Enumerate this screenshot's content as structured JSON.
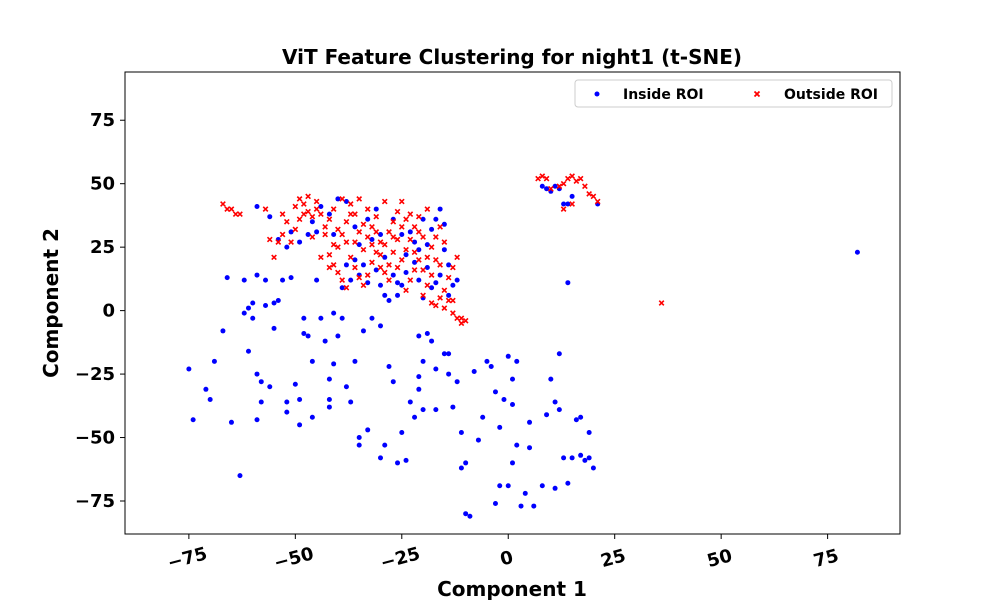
{
  "chart_data": {
    "type": "scatter",
    "title": "ViT Feature Clustering for night1 (t-SNE)",
    "xlabel": "Component 1",
    "ylabel": "Component 2",
    "xlim": [
      -90,
      92
    ],
    "ylim": [
      -88,
      94
    ],
    "xticks": [
      -75,
      -50,
      -25,
      0,
      25,
      50,
      75
    ],
    "yticks": [
      -75,
      -50,
      -25,
      0,
      25,
      50,
      75
    ],
    "grid": false,
    "legend_position": "top-right",
    "series": [
      {
        "name": "Inside ROI",
        "color": "#0000ff",
        "marker": "circle",
        "points": [
          [
            -75,
            -23
          ],
          [
            -74,
            -43
          ],
          [
            -71,
            -31
          ],
          [
            -70,
            -35
          ],
          [
            -69,
            -20
          ],
          [
            -67,
            -8
          ],
          [
            -66,
            13
          ],
          [
            -65,
            -44
          ],
          [
            -63,
            -65
          ],
          [
            -62,
            12
          ],
          [
            -62,
            -1
          ],
          [
            -61,
            1
          ],
          [
            -61,
            -16
          ],
          [
            -60,
            3
          ],
          [
            -60,
            -3
          ],
          [
            -59,
            14
          ],
          [
            -59,
            -25
          ],
          [
            -59,
            -43
          ],
          [
            -58,
            -36
          ],
          [
            -58,
            -28
          ],
          [
            -57,
            2
          ],
          [
            -57,
            12
          ],
          [
            -56,
            -30
          ],
          [
            -55,
            3
          ],
          [
            -55,
            -7
          ],
          [
            -54,
            4
          ],
          [
            -53,
            12
          ],
          [
            -52,
            -40
          ],
          [
            -52,
            -36
          ],
          [
            -51,
            13
          ],
          [
            -50,
            -29
          ],
          [
            -49,
            -45
          ],
          [
            -49,
            -35
          ],
          [
            -48,
            -3
          ],
          [
            -48,
            -9
          ],
          [
            -47,
            -10
          ],
          [
            -46,
            -20
          ],
          [
            -46,
            -42
          ],
          [
            -45,
            12
          ],
          [
            -44,
            -3
          ],
          [
            -43,
            -12
          ],
          [
            -42,
            -35
          ],
          [
            -42,
            -27
          ],
          [
            -42,
            -38
          ],
          [
            -41,
            -21
          ],
          [
            -41,
            -1
          ],
          [
            -40,
            -10
          ],
          [
            -39,
            -3
          ],
          [
            -38,
            -30
          ],
          [
            -37,
            -36
          ],
          [
            -36,
            -20
          ],
          [
            -35,
            -53
          ],
          [
            -35,
            -50
          ],
          [
            -34,
            -8
          ],
          [
            -33,
            -47
          ],
          [
            -32,
            -3
          ],
          [
            -30,
            -58
          ],
          [
            -30,
            -6
          ],
          [
            -29,
            -53
          ],
          [
            -28,
            -22
          ],
          [
            -27,
            -28
          ],
          [
            -26,
            -60
          ],
          [
            -25,
            -48
          ],
          [
            -24,
            -59
          ],
          [
            -23,
            -36
          ],
          [
            -22,
            -42
          ],
          [
            -21,
            -31
          ],
          [
            -21,
            -26
          ],
          [
            -21,
            -10
          ],
          [
            -20,
            -20
          ],
          [
            -20,
            -39
          ],
          [
            -19,
            -9
          ],
          [
            -18,
            -12
          ],
          [
            -17,
            -23
          ],
          [
            -17,
            -39
          ],
          [
            -15,
            -17
          ],
          [
            -14,
            -17
          ],
          [
            -14,
            -25
          ],
          [
            -13,
            -38
          ],
          [
            -12,
            -28
          ],
          [
            -11,
            -48
          ],
          [
            -11,
            -62
          ],
          [
            -10,
            -80
          ],
          [
            -10,
            -60
          ],
          [
            -9,
            -81
          ],
          [
            -8,
            -24
          ],
          [
            -7,
            -51
          ],
          [
            -6,
            -42
          ],
          [
            -5,
            -20
          ],
          [
            -4,
            -22
          ],
          [
            -3,
            -32
          ],
          [
            -3,
            -76
          ],
          [
            -2,
            -46
          ],
          [
            -2,
            -69
          ],
          [
            -1,
            -35
          ],
          [
            0,
            -18
          ],
          [
            0,
            -69
          ],
          [
            1,
            -60
          ],
          [
            1,
            -37
          ],
          [
            1,
            -27
          ],
          [
            2,
            -20
          ],
          [
            2,
            -53
          ],
          [
            3,
            -77
          ],
          [
            4,
            -72
          ],
          [
            5,
            -44
          ],
          [
            5,
            -54
          ],
          [
            6,
            -77
          ],
          [
            8,
            -69
          ],
          [
            9,
            -41
          ],
          [
            10,
            -27
          ],
          [
            11,
            -70
          ],
          [
            11,
            -36
          ],
          [
            12,
            -17
          ],
          [
            12,
            -39
          ],
          [
            13,
            -58
          ],
          [
            14,
            -68
          ],
          [
            15,
            -58
          ],
          [
            16,
            -43
          ],
          [
            17,
            -42
          ],
          [
            17,
            -57
          ],
          [
            18,
            -59
          ],
          [
            19,
            -58
          ],
          [
            19,
            -48
          ],
          [
            20,
            -62
          ],
          [
            82,
            23
          ],
          [
            -59,
            41
          ],
          [
            -56,
            37
          ],
          [
            -54,
            28
          ],
          [
            -52,
            25
          ],
          [
            -51,
            31
          ],
          [
            -49,
            27
          ],
          [
            -47,
            30
          ],
          [
            -46,
            35
          ],
          [
            -44,
            41
          ],
          [
            -42,
            38
          ],
          [
            -40,
            44
          ],
          [
            -38,
            43
          ],
          [
            -36,
            33
          ],
          [
            -35,
            26
          ],
          [
            -33,
            36
          ],
          [
            -31,
            40
          ],
          [
            -30,
            30
          ],
          [
            -29,
            21
          ],
          [
            -27,
            14
          ],
          [
            -26,
            6
          ],
          [
            -25,
            10
          ],
          [
            -24,
            15
          ],
          [
            -22,
            19
          ],
          [
            -21,
            12
          ],
          [
            -20,
            5
          ],
          [
            -19,
            26
          ],
          [
            -18,
            32
          ],
          [
            -17,
            36
          ],
          [
            -16,
            40
          ],
          [
            -15,
            24
          ],
          [
            -14,
            18
          ],
          [
            -13,
            10
          ],
          [
            -39,
            9
          ],
          [
            -38,
            18
          ],
          [
            -37,
            12
          ],
          [
            -36,
            20
          ],
          [
            -35,
            14
          ],
          [
            -33,
            11
          ],
          [
            -31,
            16
          ],
          [
            -29,
            6
          ],
          [
            -28,
            4
          ],
          [
            -26,
            11
          ],
          [
            -24,
            22
          ],
          [
            -23,
            31
          ],
          [
            -22,
            27
          ],
          [
            -20,
            36
          ],
          [
            -18,
            9
          ],
          [
            -16,
            14
          ],
          [
            -14,
            6
          ],
          [
            -12,
            12
          ],
          [
            -45,
            31
          ],
          [
            -41,
            30
          ],
          [
            -34,
            18
          ],
          [
            -32,
            28
          ],
          [
            -30,
            10
          ],
          [
            -27,
            36
          ],
          [
            -25,
            30
          ],
          [
            -21,
            24
          ],
          [
            -19,
            17
          ],
          [
            -17,
            11
          ],
          [
            -15,
            34
          ],
          [
            8,
            49
          ],
          [
            9,
            48
          ],
          [
            10,
            47
          ],
          [
            11,
            49
          ],
          [
            12,
            48
          ],
          [
            13,
            42
          ],
          [
            14,
            42
          ],
          [
            15,
            45
          ],
          [
            21,
            42
          ],
          [
            14,
            11
          ]
        ]
      },
      {
        "name": "Outside ROI",
        "color": "#ff0000",
        "marker": "cross",
        "points": [
          [
            -67,
            42
          ],
          [
            -66,
            40
          ],
          [
            -65,
            40
          ],
          [
            -64,
            38
          ],
          [
            -63,
            38
          ],
          [
            -56,
            28
          ],
          [
            -55,
            21
          ],
          [
            -54,
            27
          ],
          [
            -53,
            30
          ],
          [
            -52,
            35
          ],
          [
            -51,
            27
          ],
          [
            -50,
            32
          ],
          [
            -49,
            36
          ],
          [
            -48,
            42
          ],
          [
            -47,
            39
          ],
          [
            -46,
            37
          ],
          [
            -45,
            43
          ],
          [
            -44,
            38
          ],
          [
            -43,
            30
          ],
          [
            -42,
            36
          ],
          [
            -41,
            40
          ],
          [
            -40,
            25
          ],
          [
            -39,
            30
          ],
          [
            -38,
            35
          ],
          [
            -37,
            42
          ],
          [
            -36,
            27
          ],
          [
            -35,
            31
          ],
          [
            -34,
            24
          ],
          [
            -33,
            29
          ],
          [
            -32,
            33
          ],
          [
            -31,
            37
          ],
          [
            -30,
            22
          ],
          [
            -29,
            26
          ],
          [
            -28,
            31
          ],
          [
            -27,
            35
          ],
          [
            -26,
            39
          ],
          [
            -25,
            20
          ],
          [
            -24,
            24
          ],
          [
            -23,
            28
          ],
          [
            -22,
            33
          ],
          [
            -21,
            37
          ],
          [
            -20,
            16
          ],
          [
            -19,
            21
          ],
          [
            -18,
            25
          ],
          [
            -17,
            29
          ],
          [
            -16,
            33
          ],
          [
            -15,
            8
          ],
          [
            -14,
            13
          ],
          [
            -13,
            17
          ],
          [
            -12,
            21
          ],
          [
            -42,
            22
          ],
          [
            -41,
            18
          ],
          [
            -40,
            15
          ],
          [
            -39,
            12
          ],
          [
            -38,
            9
          ],
          [
            -37,
            21
          ],
          [
            -36,
            17
          ],
          [
            -35,
            13
          ],
          [
            -34,
            10
          ],
          [
            -33,
            14
          ],
          [
            -32,
            19
          ],
          [
            -31,
            23
          ],
          [
            -30,
            27
          ],
          [
            -29,
            15
          ],
          [
            -28,
            18
          ],
          [
            -27,
            23
          ],
          [
            -26,
            28
          ],
          [
            -25,
            33
          ],
          [
            -24,
            8
          ],
          [
            -23,
            12
          ],
          [
            -22,
            16
          ],
          [
            -21,
            20
          ],
          [
            -20,
            6
          ],
          [
            -19,
            10
          ],
          [
            -18,
            14
          ],
          [
            -17,
            2
          ],
          [
            -16,
            5
          ],
          [
            -15,
            1
          ],
          [
            -14,
            4
          ],
          [
            -13,
            -1
          ],
          [
            -12,
            -3
          ],
          [
            -11,
            -5
          ],
          [
            -10,
            -4
          ],
          [
            -57,
            40
          ],
          [
            -53,
            38
          ],
          [
            -49,
            44
          ],
          [
            -47,
            45
          ],
          [
            -45,
            40
          ],
          [
            -43,
            33
          ],
          [
            -41,
            26
          ],
          [
            -39,
            44
          ],
          [
            -37,
            38
          ],
          [
            -35,
            44
          ],
          [
            -33,
            40
          ],
          [
            -31,
            31
          ],
          [
            -29,
            43
          ],
          [
            -27,
            29
          ],
          [
            -25,
            43
          ],
          [
            -23,
            38
          ],
          [
            -21,
            31
          ],
          [
            -19,
            40
          ],
          [
            -17,
            20
          ],
          [
            -15,
            27
          ],
          [
            -13,
            4
          ],
          [
            -11,
            -3
          ],
          [
            -50,
            41
          ],
          [
            -48,
            38
          ],
          [
            -46,
            29
          ],
          [
            -44,
            21
          ],
          [
            -42,
            17
          ],
          [
            -40,
            32
          ],
          [
            -38,
            27
          ],
          [
            -36,
            38
          ],
          [
            -34,
            34
          ],
          [
            -32,
            26
          ],
          [
            -30,
            17
          ],
          [
            -28,
            12
          ],
          [
            -26,
            17
          ],
          [
            -24,
            36
          ],
          [
            -22,
            23
          ],
          [
            -20,
            29
          ],
          [
            -18,
            3
          ],
          [
            -16,
            18
          ],
          [
            7,
            52
          ],
          [
            8,
            53
          ],
          [
            9,
            52
          ],
          [
            10,
            48
          ],
          [
            12,
            49
          ],
          [
            13,
            50
          ],
          [
            14,
            52
          ],
          [
            15,
            53
          ],
          [
            16,
            51
          ],
          [
            17,
            52
          ],
          [
            18,
            49
          ],
          [
            19,
            46
          ],
          [
            20,
            45
          ],
          [
            21,
            43
          ],
          [
            13,
            40
          ],
          [
            15,
            42
          ],
          [
            36,
            3
          ]
        ]
      }
    ]
  }
}
